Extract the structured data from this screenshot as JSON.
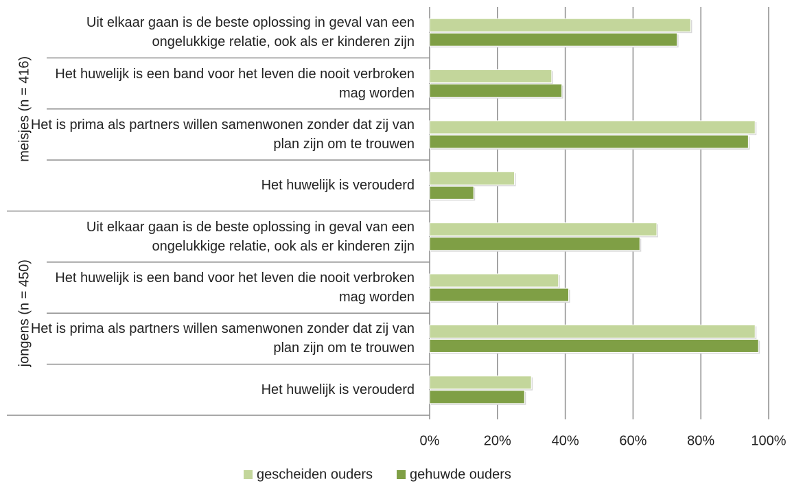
{
  "chart_data": {
    "type": "barh",
    "groups": [
      "meisjes (n = 416)",
      "jongens (n = 450)"
    ],
    "categories": [
      "Uit elkaar gaan is de beste oplossing in geval van een ongelukkige relatie, ook als er kinderen zijn",
      "Het huwelijk is een band voor het leven die nooit verbroken mag worden",
      "Het is prima als partners willen samenwonen zonder dat zij van plan zijn om te trouwen",
      "Het huwelijk is verouderd",
      "Uit elkaar gaan is de beste oplossing in geval van een ongelukkige relatie, ook als er kinderen zijn",
      "Het huwelijk is een band voor het leven die nooit verbroken mag worden",
      "Het is prima als partners willen samenwonen zonder dat zij van plan zijn om te trouwen",
      "Het huwelijk is verouderd"
    ],
    "series": [
      {
        "name": "gescheiden ouders",
        "color": "#c3d69b",
        "values": [
          77,
          36,
          96,
          25,
          67,
          38,
          96,
          30
        ]
      },
      {
        "name": "gehuwde ouders",
        "color": "#7f9f45",
        "values": [
          73,
          39,
          94,
          13,
          62,
          41,
          97,
          28
        ]
      }
    ],
    "xlim": [
      0,
      100
    ],
    "xticks": [
      {
        "value": 0,
        "label": "0%"
      },
      {
        "value": 20,
        "label": "20%"
      },
      {
        "value": 40,
        "label": "40%"
      },
      {
        "value": 60,
        "label": "60%"
      },
      {
        "value": 80,
        "label": "80%"
      },
      {
        "value": 100,
        "label": "100%"
      }
    ],
    "grid": true,
    "legend": "bottom"
  }
}
